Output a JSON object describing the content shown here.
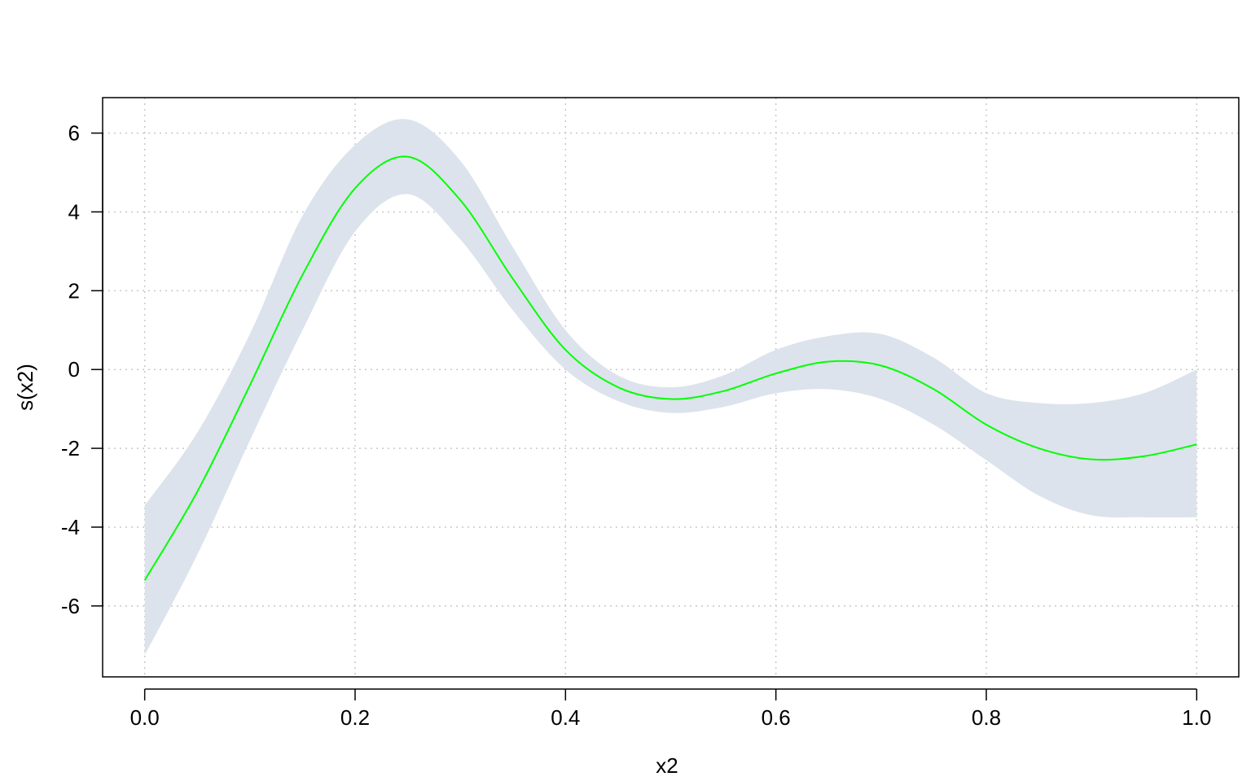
{
  "chart_data": {
    "type": "line",
    "title": "",
    "xlabel": "x2",
    "ylabel": "s(x2)",
    "xlim": [
      -0.04,
      1.04
    ],
    "ylim": [
      -7.8,
      6.9
    ],
    "x_ticks": [
      0.0,
      0.2,
      0.4,
      0.6,
      0.8,
      1.0
    ],
    "x_tick_labels": [
      "0.0",
      "0.2",
      "0.4",
      "0.6",
      "0.8",
      "1.0"
    ],
    "y_ticks": [
      -6,
      -4,
      -2,
      0,
      2,
      4,
      6
    ],
    "y_tick_labels": [
      "-6",
      "-4",
      "-2",
      "0",
      "2",
      "4",
      "6"
    ],
    "grid": true,
    "colors": {
      "line": "#00ff00",
      "band": "#dce3ec",
      "grid": "#c8c8c8",
      "axis": "#000000"
    },
    "x": [
      0.0,
      0.05,
      0.1,
      0.15,
      0.2,
      0.25,
      0.3,
      0.35,
      0.4,
      0.45,
      0.5,
      0.55,
      0.6,
      0.65,
      0.7,
      0.75,
      0.8,
      0.85,
      0.9,
      0.95,
      1.0
    ],
    "series": [
      {
        "role": "estimate",
        "values": [
          -5.35,
          -3.1,
          -0.4,
          2.4,
          4.6,
          5.4,
          4.3,
          2.3,
          0.5,
          -0.45,
          -0.75,
          -0.55,
          -0.1,
          0.2,
          0.1,
          -0.5,
          -1.4,
          -2.0,
          -2.28,
          -2.2,
          -1.9
        ]
      },
      {
        "role": "upper",
        "values": [
          -3.45,
          -1.6,
          0.9,
          3.9,
          5.7,
          6.35,
          5.3,
          3.1,
          1.0,
          -0.15,
          -0.45,
          -0.15,
          0.5,
          0.85,
          0.9,
          0.3,
          -0.6,
          -0.85,
          -0.85,
          -0.6,
          0.0
        ]
      },
      {
        "role": "lower",
        "values": [
          -7.25,
          -4.7,
          -1.8,
          1.0,
          3.5,
          4.45,
          3.3,
          1.5,
          0.0,
          -0.8,
          -1.1,
          -0.95,
          -0.6,
          -0.5,
          -0.75,
          -1.4,
          -2.3,
          -3.2,
          -3.7,
          -3.75,
          -3.75
        ]
      }
    ]
  }
}
